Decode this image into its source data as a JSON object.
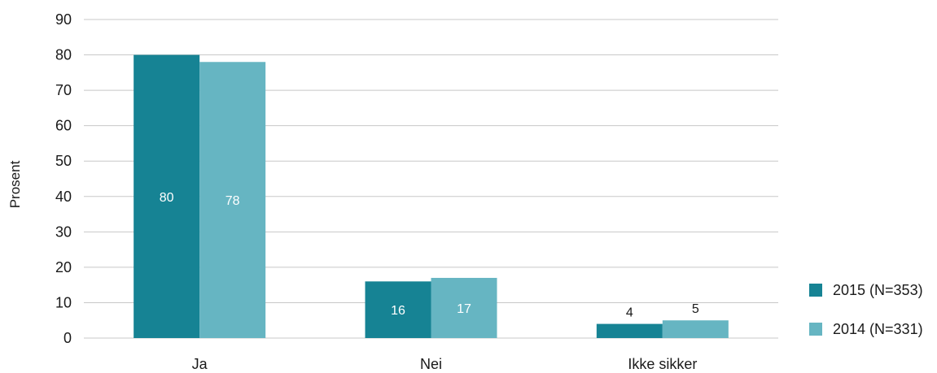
{
  "chart_data": {
    "type": "bar",
    "title": "",
    "xlabel": "",
    "ylabel": "Prosent",
    "ylim": [
      0,
      90
    ],
    "yticks": [
      0,
      10,
      20,
      30,
      40,
      50,
      60,
      70,
      80,
      90
    ],
    "grid": true,
    "legend_position": "right",
    "categories": [
      "Ja",
      "Nei",
      "Ikke sikker"
    ],
    "series": [
      {
        "name": "2015 (N=353)",
        "values": [
          80,
          16,
          4
        ],
        "color": "#168394"
      },
      {
        "name": "2014 (N=331)",
        "values": [
          78,
          17,
          5
        ],
        "color": "#66b5c2"
      }
    ]
  }
}
